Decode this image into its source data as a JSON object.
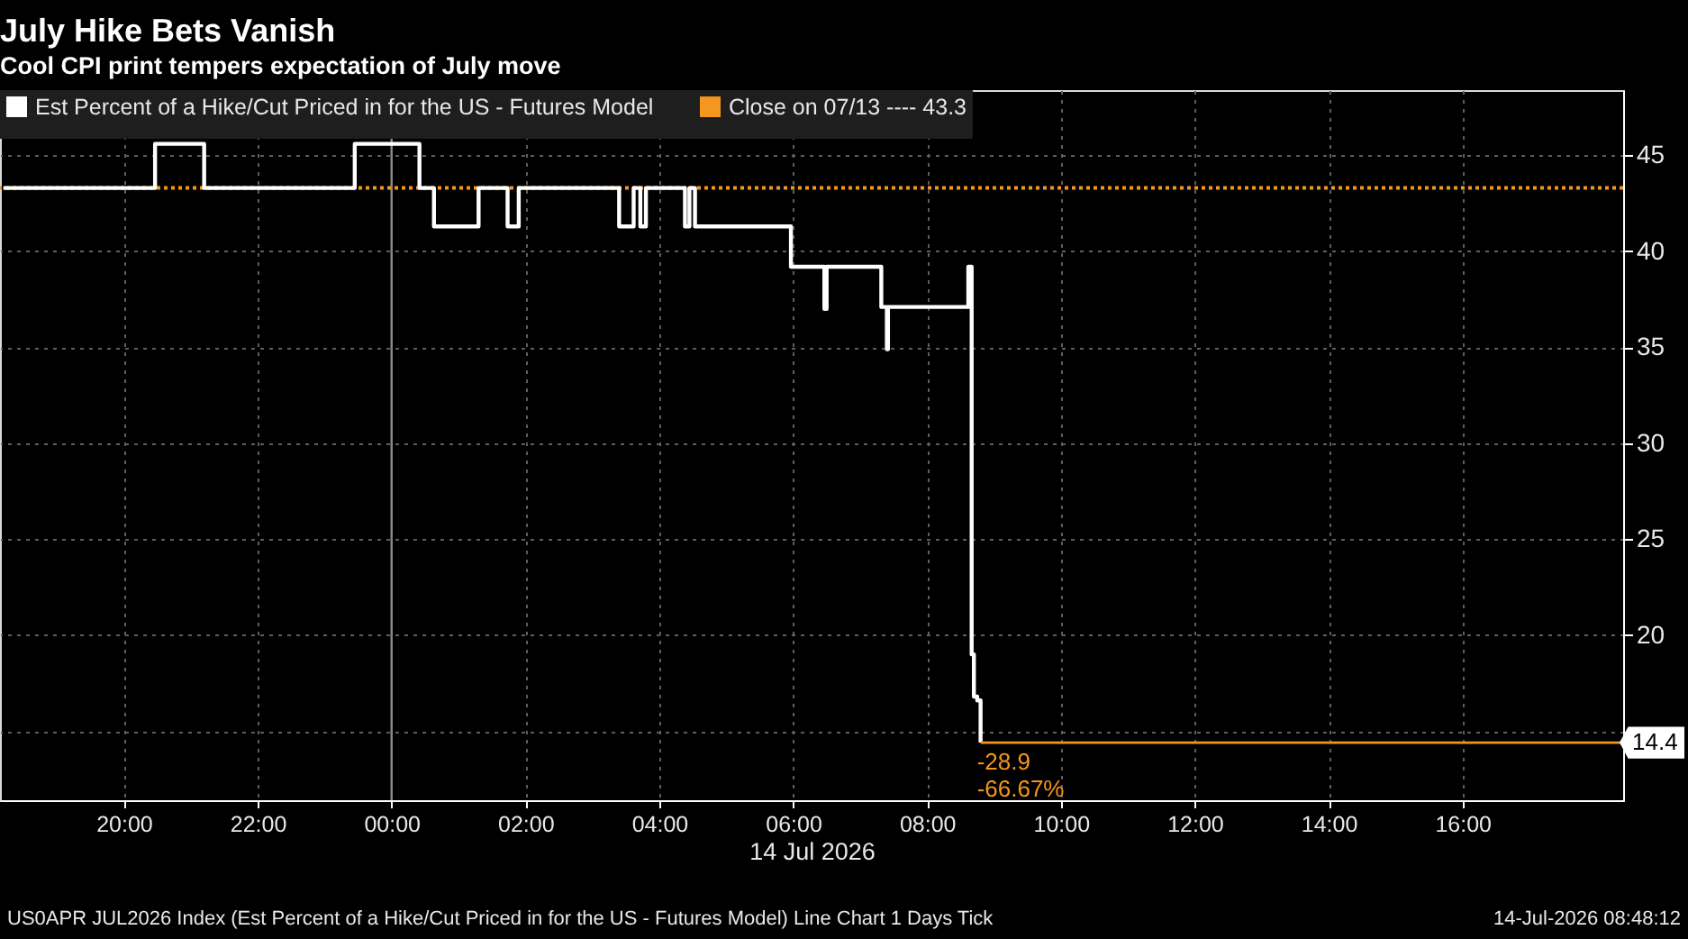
{
  "chart_data": {
    "type": "step",
    "title": "July Hike Bets Vanish",
    "subtitle": "Cool CPI print tempers expectation of July move",
    "xlabel": "14 Jul 2026",
    "xlim": [
      "2026-07-13T18:09",
      "2026-07-14T18:24"
    ],
    "xticks": [
      {
        "value": "2026-07-13T20:00",
        "label": "20:00"
      },
      {
        "value": "2026-07-13T22:00",
        "label": "22:00"
      },
      {
        "value": "2026-07-14T00:00",
        "label": "00:00"
      },
      {
        "value": "2026-07-14T02:00",
        "label": "02:00"
      },
      {
        "value": "2026-07-14T04:00",
        "label": "04:00"
      },
      {
        "value": "2026-07-14T06:00",
        "label": "06:00"
      },
      {
        "value": "2026-07-14T08:00",
        "label": "08:00"
      },
      {
        "value": "2026-07-14T10:00",
        "label": "10:00"
      },
      {
        "value": "2026-07-14T12:00",
        "label": "12:00"
      },
      {
        "value": "2026-07-14T14:00",
        "label": "14:00"
      },
      {
        "value": "2026-07-14T16:00",
        "label": "16:00"
      }
    ],
    "ylim": [
      11.4,
      48.4
    ],
    "yticks": [
      {
        "value": 15,
        "label": null
      },
      20,
      25,
      30,
      35,
      40,
      45
    ],
    "grid": true,
    "legend": "top left",
    "series": [
      {
        "name": "Est Percent of a Hike/Cut Priced in for the US - Futures Model",
        "color": "#ffffff",
        "x": [
          "2026-07-13T18:12",
          "2026-07-13T20:28",
          "2026-07-13T21:12",
          "2026-07-13T23:27",
          "2026-07-14T00:25",
          "2026-07-14T00:38",
          "2026-07-14T01:18",
          "2026-07-14T01:44",
          "2026-07-14T01:54",
          "2026-07-14T03:24",
          "2026-07-14T03:37",
          "2026-07-14T03:43",
          "2026-07-14T03:48",
          "2026-07-14T04:23",
          "2026-07-14T04:27",
          "2026-07-14T04:32",
          "2026-07-14T05:58",
          "2026-07-14T06:28",
          "2026-07-14T06:30",
          "2026-07-14T07:19",
          "2026-07-14T07:24",
          "2026-07-14T07:25",
          "2026-07-14T08:37",
          "2026-07-14T08:40",
          "2026-07-14T08:42",
          "2026-07-14T08:45",
          "2026-07-14T08:48"
        ],
        "values": [
          43.3,
          45.6,
          43.3,
          45.6,
          43.3,
          41.3,
          43.3,
          41.3,
          43.3,
          41.3,
          43.3,
          41.3,
          43.3,
          41.3,
          43.3,
          41.3,
          39.2,
          37.0,
          39.2,
          37.1,
          34.9,
          37.1,
          39.2,
          19.0,
          16.8,
          16.6,
          14.4
        ]
      },
      {
        "type": "line",
        "color": "#f5961e",
        "x": [
          "2026-07-14T08:48",
          "2026-07-14T18:24"
        ],
        "values": [
          14.4,
          14.4
        ],
        "value_labels": [
          null,
          "14.4"
        ]
      }
    ],
    "ref_lines": [
      {
        "axis": "x",
        "value": "2026-07-14T00:00",
        "color": "#8c8c8c"
      },
      {
        "axis": "y",
        "value": 43.3,
        "label": "Close on 07/13 ---- 43.3",
        "color": "#f5961e",
        "line_style": "dotted"
      }
    ],
    "annotations": [
      {
        "text": "-28.9",
        "x": "2026-07-14T08:48",
        "y": 14.4
      },
      {
        "text": "-66.67%",
        "x": "2026-07-14T08:48",
        "y": 14.4
      },
      "US0APR JUL2026 Index (Est Percent of a Hike/Cut Priced in for the US - Futures Model) Line Chart 1 Days Tick",
      "14-Jul-2026 08:48:12"
    ]
  }
}
